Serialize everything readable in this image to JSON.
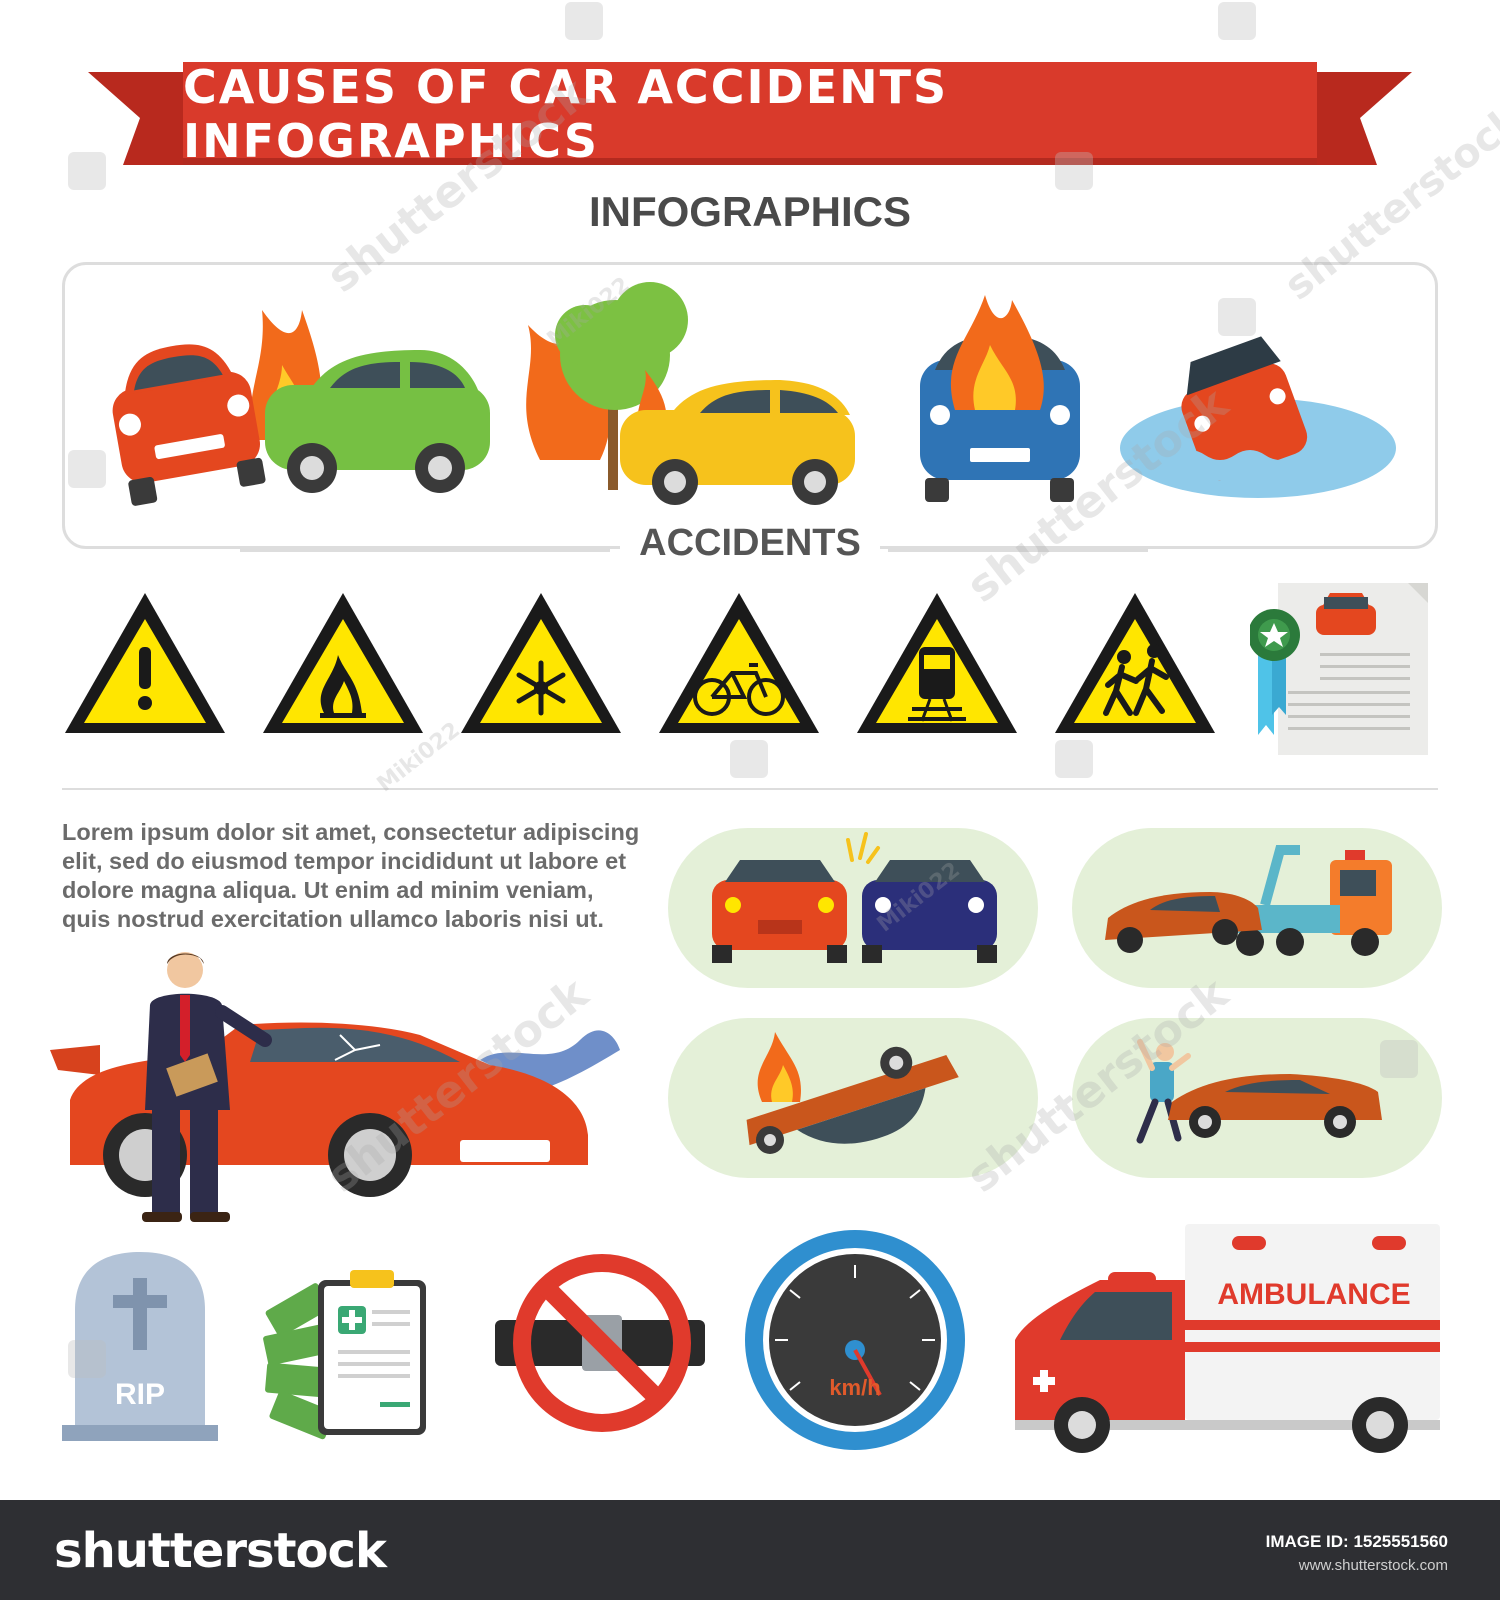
{
  "title": "CAUSES OF CAR ACCIDENTS INFOGRAPHICS",
  "subtitle": "INFOGRAPHICS",
  "section_label": "ACCIDENTS",
  "body_text": "Lorem ipsum dolor sit amet, consectetur adipiscing elit, sed do eiusmod tempor incididunt ut labore et dolore magna aliqua. Ut enim ad minim veniam, quis nostrud exercitation ullamco laboris nisi ut.",
  "icons": {
    "warning_signs": [
      "exclamation-icon",
      "fire-icon",
      "snowflake-icon",
      "bicycle-icon",
      "train-icon",
      "pedestrian-icon"
    ],
    "top_scenes": [
      "car-collision-fire",
      "car-tree-fire",
      "car-engine-fire",
      "car-sinking-water"
    ],
    "badges": [
      "head-on-collision",
      "tow-truck",
      "overturned-car-fire",
      "pedestrian-hit"
    ]
  },
  "labels": {
    "rip": "RIP",
    "speed_unit": "km/h",
    "ambulance": "AMBULANCE"
  },
  "watermark": {
    "text": "shutterstock",
    "author": "Miki022"
  },
  "footer": {
    "brand": "shutterstock",
    "image_id": "IMAGE ID: 1525551560",
    "site": "www.shutterstock.com"
  },
  "colors": {
    "banner_red": "#d93a2b",
    "warning_yellow": "#ffe600",
    "badge_green": "#e4f0d8",
    "footer_bg": "#2e2f33"
  }
}
